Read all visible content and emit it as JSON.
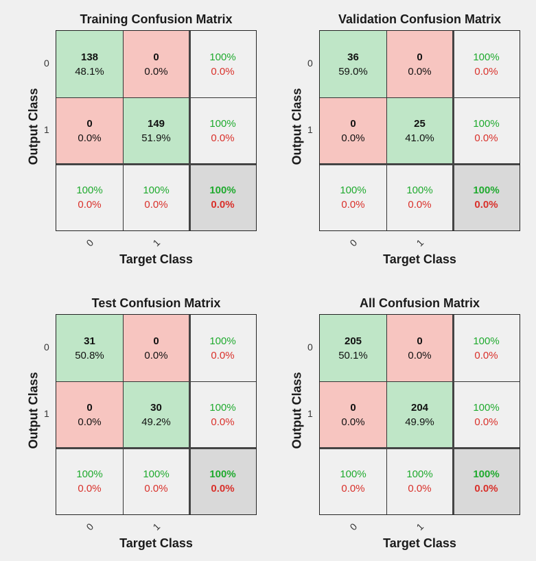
{
  "chart_data": [
    {
      "type": "table",
      "title": "Training Confusion Matrix",
      "xlabel": "Target Class",
      "ylabel": "Output Class",
      "classes": [
        "0",
        "1"
      ],
      "counts": [
        [
          "138",
          "0"
        ],
        [
          "0",
          "149"
        ]
      ],
      "percents": [
        [
          "48.1%",
          "0.0%"
        ],
        [
          "0.0%",
          "51.9%"
        ]
      ],
      "row_summary": [
        [
          "100%",
          "0.0%"
        ],
        [
          "100%",
          "0.0%"
        ]
      ],
      "col_summary": [
        [
          "100%",
          "0.0%"
        ],
        [
          "100%",
          "0.0%"
        ]
      ],
      "overall": [
        "100%",
        "0.0%"
      ]
    },
    {
      "type": "table",
      "title": "Validation Confusion Matrix",
      "xlabel": "Target Class",
      "ylabel": "Output Class",
      "classes": [
        "0",
        "1"
      ],
      "counts": [
        [
          "36",
          "0"
        ],
        [
          "0",
          "25"
        ]
      ],
      "percents": [
        [
          "59.0%",
          "0.0%"
        ],
        [
          "0.0%",
          "41.0%"
        ]
      ],
      "row_summary": [
        [
          "100%",
          "0.0%"
        ],
        [
          "100%",
          "0.0%"
        ]
      ],
      "col_summary": [
        [
          "100%",
          "0.0%"
        ],
        [
          "100%",
          "0.0%"
        ]
      ],
      "overall": [
        "100%",
        "0.0%"
      ]
    },
    {
      "type": "table",
      "title": "Test Confusion Matrix",
      "xlabel": "Target Class",
      "ylabel": "Output Class",
      "classes": [
        "0",
        "1"
      ],
      "counts": [
        [
          "31",
          "0"
        ],
        [
          "0",
          "30"
        ]
      ],
      "percents": [
        [
          "50.8%",
          "0.0%"
        ],
        [
          "0.0%",
          "49.2%"
        ]
      ],
      "row_summary": [
        [
          "100%",
          "0.0%"
        ],
        [
          "100%",
          "0.0%"
        ]
      ],
      "col_summary": [
        [
          "100%",
          "0.0%"
        ],
        [
          "100%",
          "0.0%"
        ]
      ],
      "overall": [
        "100%",
        "0.0%"
      ]
    },
    {
      "type": "table",
      "title": "All Confusion Matrix",
      "xlabel": "Target Class",
      "ylabel": "Output Class",
      "classes": [
        "0",
        "1"
      ],
      "counts": [
        [
          "205",
          "0"
        ],
        [
          "0",
          "204"
        ]
      ],
      "percents": [
        [
          "50.1%",
          "0.0%"
        ],
        [
          "0.0%",
          "49.9%"
        ]
      ],
      "row_summary": [
        [
          "100%",
          "0.0%"
        ],
        [
          "100%",
          "0.0%"
        ]
      ],
      "col_summary": [
        [
          "100%",
          "0.0%"
        ],
        [
          "100%",
          "0.0%"
        ]
      ],
      "overall": [
        "100%",
        "0.0%"
      ]
    }
  ],
  "colors": {
    "correct_cell": "#bfe6c7",
    "wrong_cell": "#f7c5c0",
    "summary_cell": "#f0f0f0",
    "total_cell": "#d9d9d9",
    "accuracy_text": "#1faa2e",
    "error_text": "#d9302a"
  }
}
